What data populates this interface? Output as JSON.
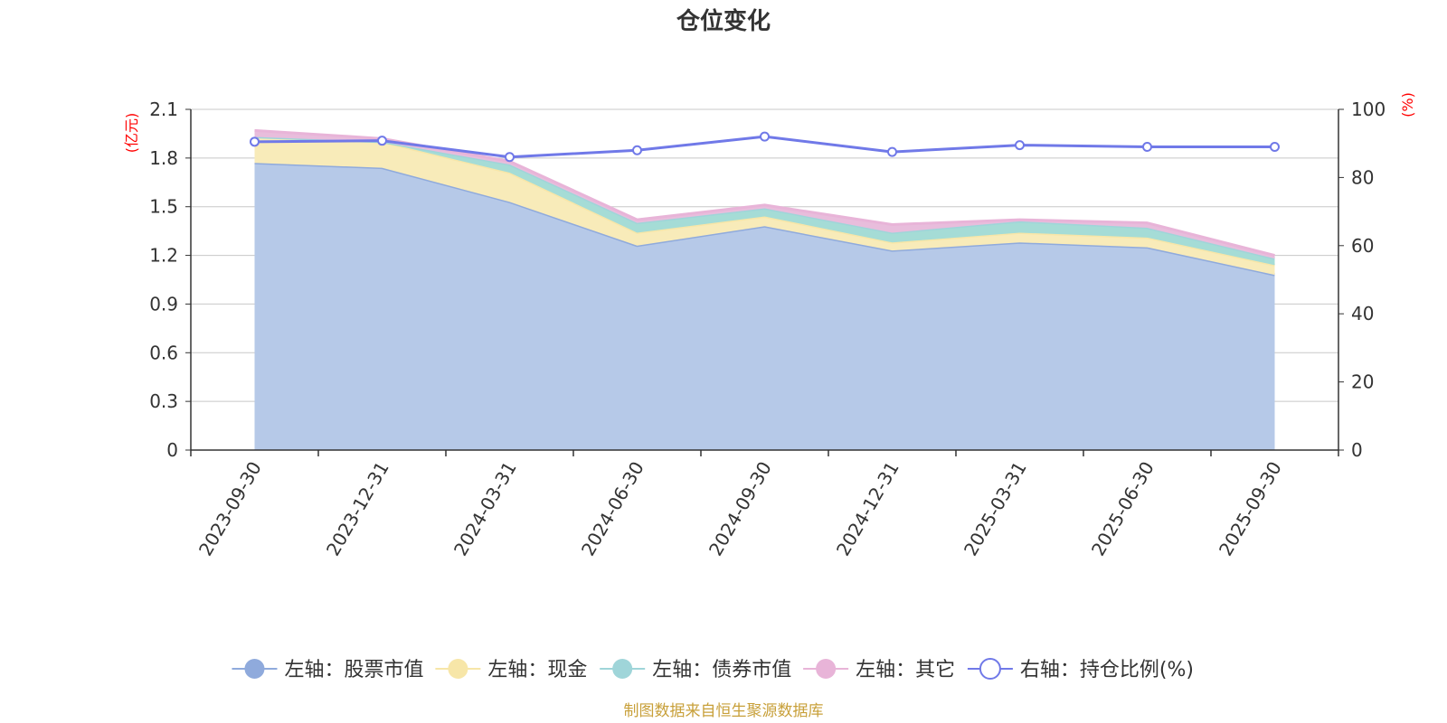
{
  "chart_data": {
    "type": "area",
    "title": "仓位变化",
    "categories": [
      "2023-09-30",
      "2023-12-31",
      "2024-03-31",
      "2024-06-30",
      "2024-09-30",
      "2024-12-31",
      "2025-03-31",
      "2025-06-30",
      "2025-09-30"
    ],
    "left_axis": {
      "unit": "(亿元)",
      "ylim": [
        0,
        2.1
      ],
      "ticks": [
        "0",
        "0.3",
        "0.6",
        "0.9",
        "1.2",
        "1.5",
        "1.8",
        "2.1"
      ]
    },
    "right_axis": {
      "unit": "(%)",
      "ylim": [
        0,
        100
      ],
      "ticks": [
        "0",
        "20",
        "40",
        "60",
        "80",
        "100"
      ]
    },
    "series": [
      {
        "name": "左轴：股票市值",
        "axis": "left",
        "stack": true,
        "line_color": "#8faadc",
        "fill_color": "#b6c9e8",
        "values": [
          1.77,
          1.74,
          1.53,
          1.26,
          1.38,
          1.23,
          1.28,
          1.25,
          1.08
        ]
      },
      {
        "name": "左轴：现金",
        "axis": "left",
        "stack": true,
        "line_color": "#f7e6a8",
        "fill_color": "#f8ebb9",
        "values": [
          0.16,
          0.16,
          0.18,
          0.08,
          0.06,
          0.05,
          0.06,
          0.06,
          0.06
        ]
      },
      {
        "name": "左轴：债券市值",
        "axis": "left",
        "stack": true,
        "line_color": "#9fd5d9",
        "fill_color": "#a5dcd6",
        "values": [
          0.0,
          0.0,
          0.05,
          0.06,
          0.05,
          0.06,
          0.07,
          0.06,
          0.04
        ]
      },
      {
        "name": "左轴：其它",
        "axis": "left",
        "stack": true,
        "line_color": "#e8b4d8",
        "fill_color": "#e8bddc",
        "values": [
          0.04,
          0.02,
          0.02,
          0.02,
          0.02,
          0.05,
          0.01,
          0.03,
          0.02
        ]
      },
      {
        "name": "右轴：持仓比例(%)",
        "axis": "right",
        "stack": false,
        "line_color": "#7079e8",
        "values": [
          90.5,
          90.8,
          86.0,
          88.0,
          92.0,
          87.5,
          89.5,
          89.0,
          89.0
        ]
      }
    ],
    "legend_position": "bottom",
    "grid": true
  },
  "source_note": "制图数据来自恒生聚源数据库"
}
